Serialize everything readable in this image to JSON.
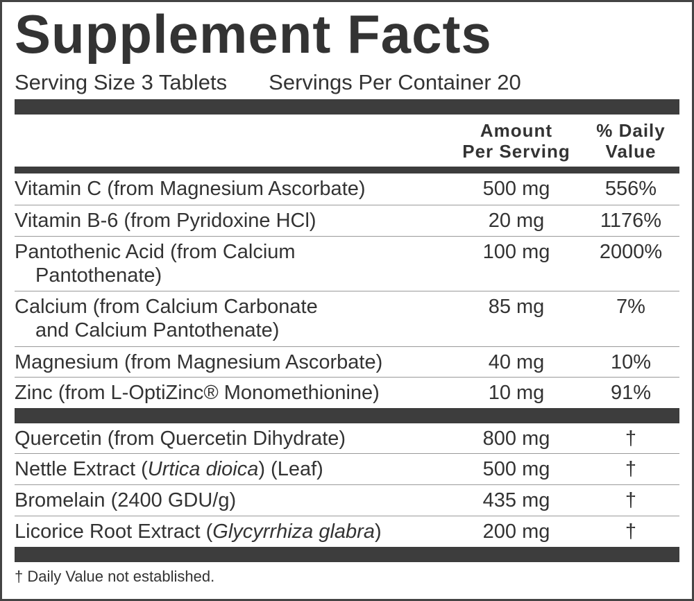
{
  "title": "Supplement Facts",
  "serving_size": "Serving Size 3 Tablets",
  "servings_per_container": "Servings Per Container 20",
  "header": {
    "amount": [
      "Amount",
      "Per Serving"
    ],
    "daily_value": [
      "% Daily",
      "Value"
    ]
  },
  "rows": [
    {
      "name": [
        "Vitamin C (from Magnesium Ascorbate)"
      ],
      "amount": "500 mg",
      "dv": "556%"
    },
    {
      "name": [
        "Vitamin B-6 (from Pyridoxine HCl)"
      ],
      "amount": "20 mg",
      "dv": "1176%"
    },
    {
      "name": [
        "Pantothenic Acid (from Calcium",
        "Pantothenate)"
      ],
      "amount": "100 mg",
      "dv": "2000%"
    },
    {
      "name": [
        "Calcium (from Calcium Carbonate",
        "and Calcium Pantothenate)"
      ],
      "amount": "85 mg",
      "dv": "7%"
    },
    {
      "name": [
        "Magnesium (from Magnesium Ascorbate)"
      ],
      "amount": "40 mg",
      "dv": "10%"
    },
    {
      "name": [
        "Zinc (from L-OptiZinc® Monomethionine)"
      ],
      "amount": "10 mg",
      "dv": "91%"
    },
    {
      "name": [
        "Quercetin (from Quercetin Dihydrate)"
      ],
      "amount": "800 mg",
      "dv": "†"
    },
    {
      "name": [
        "Nettle Extract (",
        "Urtica dioica",
        ") (Leaf)"
      ],
      "amount": "500 mg",
      "dv": "†"
    },
    {
      "name": [
        "Bromelain (2400 GDU/g)"
      ],
      "amount": "435 mg",
      "dv": "†"
    },
    {
      "name": [
        "Licorice Root Extract (",
        "Glycyrrhiza glabra",
        ")"
      ],
      "amount": "200 mg",
      "dv": "†"
    }
  ],
  "footnote": "† Daily Value not established."
}
